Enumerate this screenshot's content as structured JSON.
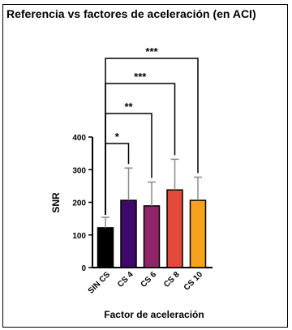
{
  "chart_data": {
    "type": "bar",
    "title": "Referencia vs factores de aceleración (en ACI)",
    "xlabel": "Factor de aceleración",
    "ylabel": "SNR",
    "categories": [
      "SIN CS",
      "CS 4",
      "CS 6",
      "CS 8",
      "CS 10"
    ],
    "values": [
      122,
      206,
      189,
      238,
      206
    ],
    "error_upper": [
      154,
      305,
      262,
      332,
      277
    ],
    "colors": [
      "#000000",
      "#3d0a6b",
      "#8f2466",
      "#e34a3b",
      "#f7a21b"
    ],
    "ylim": [
      0,
      400
    ],
    "yticks": [
      "0",
      "100",
      "200",
      "300",
      "400"
    ],
    "grid": false,
    "significance": [
      {
        "from": "SIN CS",
        "to": "CS 4",
        "label": "*"
      },
      {
        "from": "SIN CS",
        "to": "CS 6",
        "label": "**"
      },
      {
        "from": "SIN CS",
        "to": "CS 8",
        "label": "***"
      },
      {
        "from": "SIN CS",
        "to": "CS 10",
        "label": "***"
      }
    ]
  }
}
